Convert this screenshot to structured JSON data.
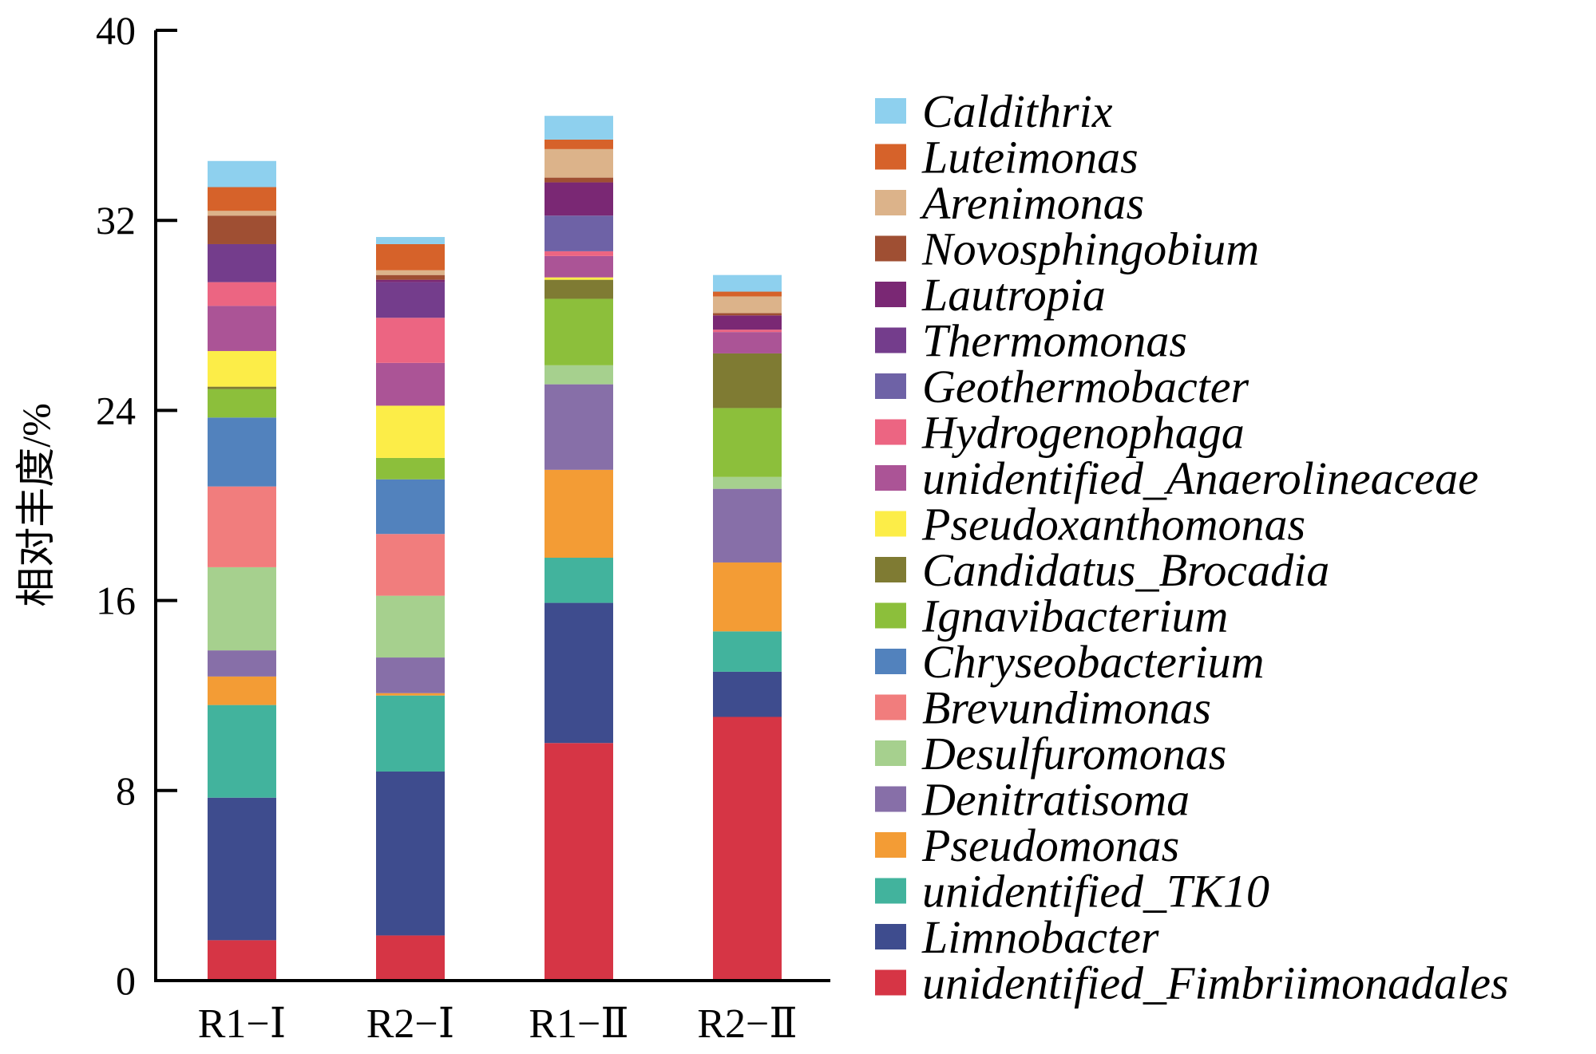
{
  "chart_data": {
    "type": "bar",
    "stacked": true,
    "title": "",
    "xlabel": "",
    "ylabel": "相对丰度/%",
    "ylim": [
      0,
      40
    ],
    "yticks": [
      0,
      8,
      16,
      24,
      32,
      40
    ],
    "grid": false,
    "legend_position": "right",
    "categories": [
      "R1−Ⅰ",
      "R2−Ⅰ",
      "R1−Ⅱ",
      "R2−Ⅱ"
    ],
    "series": [
      {
        "name": "unidentified_Fimbriimonadales",
        "color": "#d63545",
        "values": [
          1.7,
          1.9,
          10.0,
          11.1
        ]
      },
      {
        "name": "Limnobacter",
        "color": "#3e4c8e",
        "values": [
          6.0,
          6.9,
          5.9,
          1.9
        ]
      },
      {
        "name": "unidentified_TK10",
        "color": "#42b39d",
        "values": [
          3.9,
          3.2,
          1.9,
          1.7
        ]
      },
      {
        "name": "Pseudomonas",
        "color": "#f39c35",
        "values": [
          1.2,
          0.1,
          3.7,
          2.9
        ]
      },
      {
        "name": "Denitratisoma",
        "color": "#876fa8",
        "values": [
          1.1,
          1.5,
          3.6,
          3.1
        ]
      },
      {
        "name": "Desulfuromonas",
        "color": "#a6d08e",
        "values": [
          3.5,
          2.6,
          0.8,
          0.5
        ]
      },
      {
        "name": "Brevundimonas",
        "color": "#f17d7d",
        "values": [
          3.4,
          2.6,
          0.0,
          0.0
        ]
      },
      {
        "name": "Chryseobacterium",
        "color": "#5282bd",
        "values": [
          2.9,
          2.3,
          0.0,
          0.0
        ]
      },
      {
        "name": "Ignavibacterium",
        "color": "#8cbf3b",
        "values": [
          1.2,
          0.9,
          2.8,
          2.9
        ]
      },
      {
        "name": "Candidatus_Brocadia",
        "color": "#7f7b33",
        "values": [
          0.1,
          0.0,
          0.8,
          2.3
        ]
      },
      {
        "name": "Pseudoxanthomonas",
        "color": "#fced48",
        "values": [
          1.5,
          2.2,
          0.1,
          0.0
        ]
      },
      {
        "name": "unidentified_Anaerolineaceae",
        "color": "#ab5496",
        "values": [
          1.9,
          1.8,
          0.9,
          0.9
        ]
      },
      {
        "name": "Hydrogenophaga",
        "color": "#ec6582",
        "values": [
          1.0,
          1.9,
          0.2,
          0.1
        ]
      },
      {
        "name": "Geothermobacter",
        "color": "#6e62a6",
        "values": [
          0.0,
          0.0,
          1.5,
          0.0
        ]
      },
      {
        "name": "Thermomonas",
        "color": "#743d8c",
        "values": [
          1.6,
          1.5,
          0.0,
          0.0
        ]
      },
      {
        "name": "Lautropia",
        "color": "#7a2874",
        "values": [
          0.0,
          0.1,
          1.4,
          0.6
        ]
      },
      {
        "name": "Novosphingobium",
        "color": "#9f4f33",
        "values": [
          1.2,
          0.2,
          0.2,
          0.1
        ]
      },
      {
        "name": "Arenimonas",
        "color": "#dcb38a",
        "values": [
          0.2,
          0.2,
          1.2,
          0.7
        ]
      },
      {
        "name": "Luteimonas",
        "color": "#d6622a",
        "values": [
          1.0,
          1.1,
          0.4,
          0.2
        ]
      },
      {
        "name": "Caldithrix",
        "color": "#8ed0ee",
        "values": [
          1.1,
          0.3,
          1.0,
          0.7
        ]
      }
    ]
  }
}
